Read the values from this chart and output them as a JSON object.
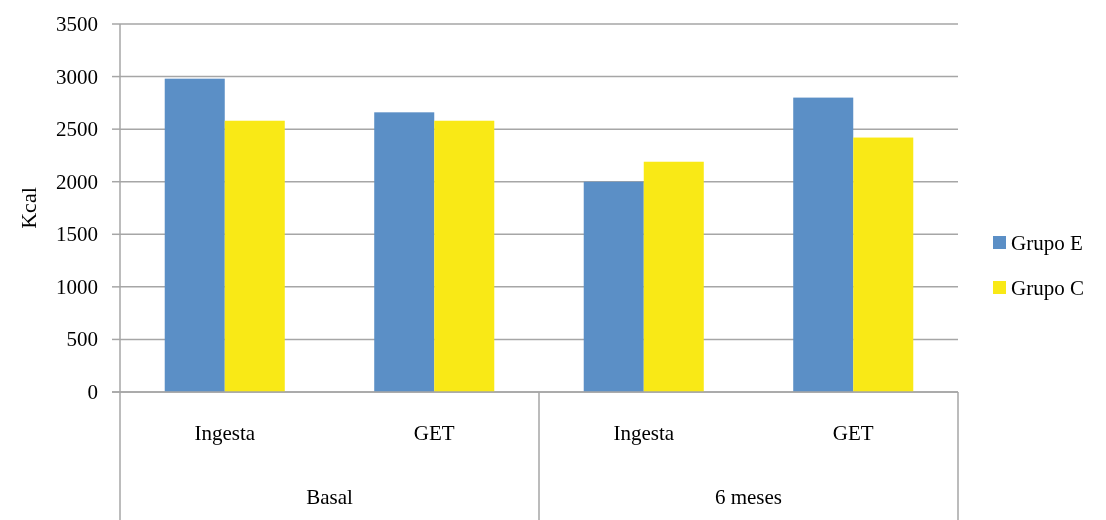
{
  "chart_data": {
    "type": "bar",
    "ylabel": "Kcal",
    "categories": [
      "Ingesta",
      "GET",
      "Ingesta",
      "GET"
    ],
    "series": [
      {
        "name": "Grupo E",
        "color": "#5b8fc6",
        "values": [
          2980,
          2660,
          2000,
          2800
        ]
      },
      {
        "name": "Grupo C",
        "color": "#f9e916",
        "values": [
          2580,
          2580,
          2190,
          2420
        ]
      }
    ],
    "ylim": [
      0,
      3500
    ],
    "yticks": [
      0,
      500,
      1000,
      1500,
      2000,
      2500,
      3000,
      3500
    ],
    "grid": "y",
    "legend": "right",
    "annotations": [
      "Basal",
      "6 meses"
    ]
  }
}
